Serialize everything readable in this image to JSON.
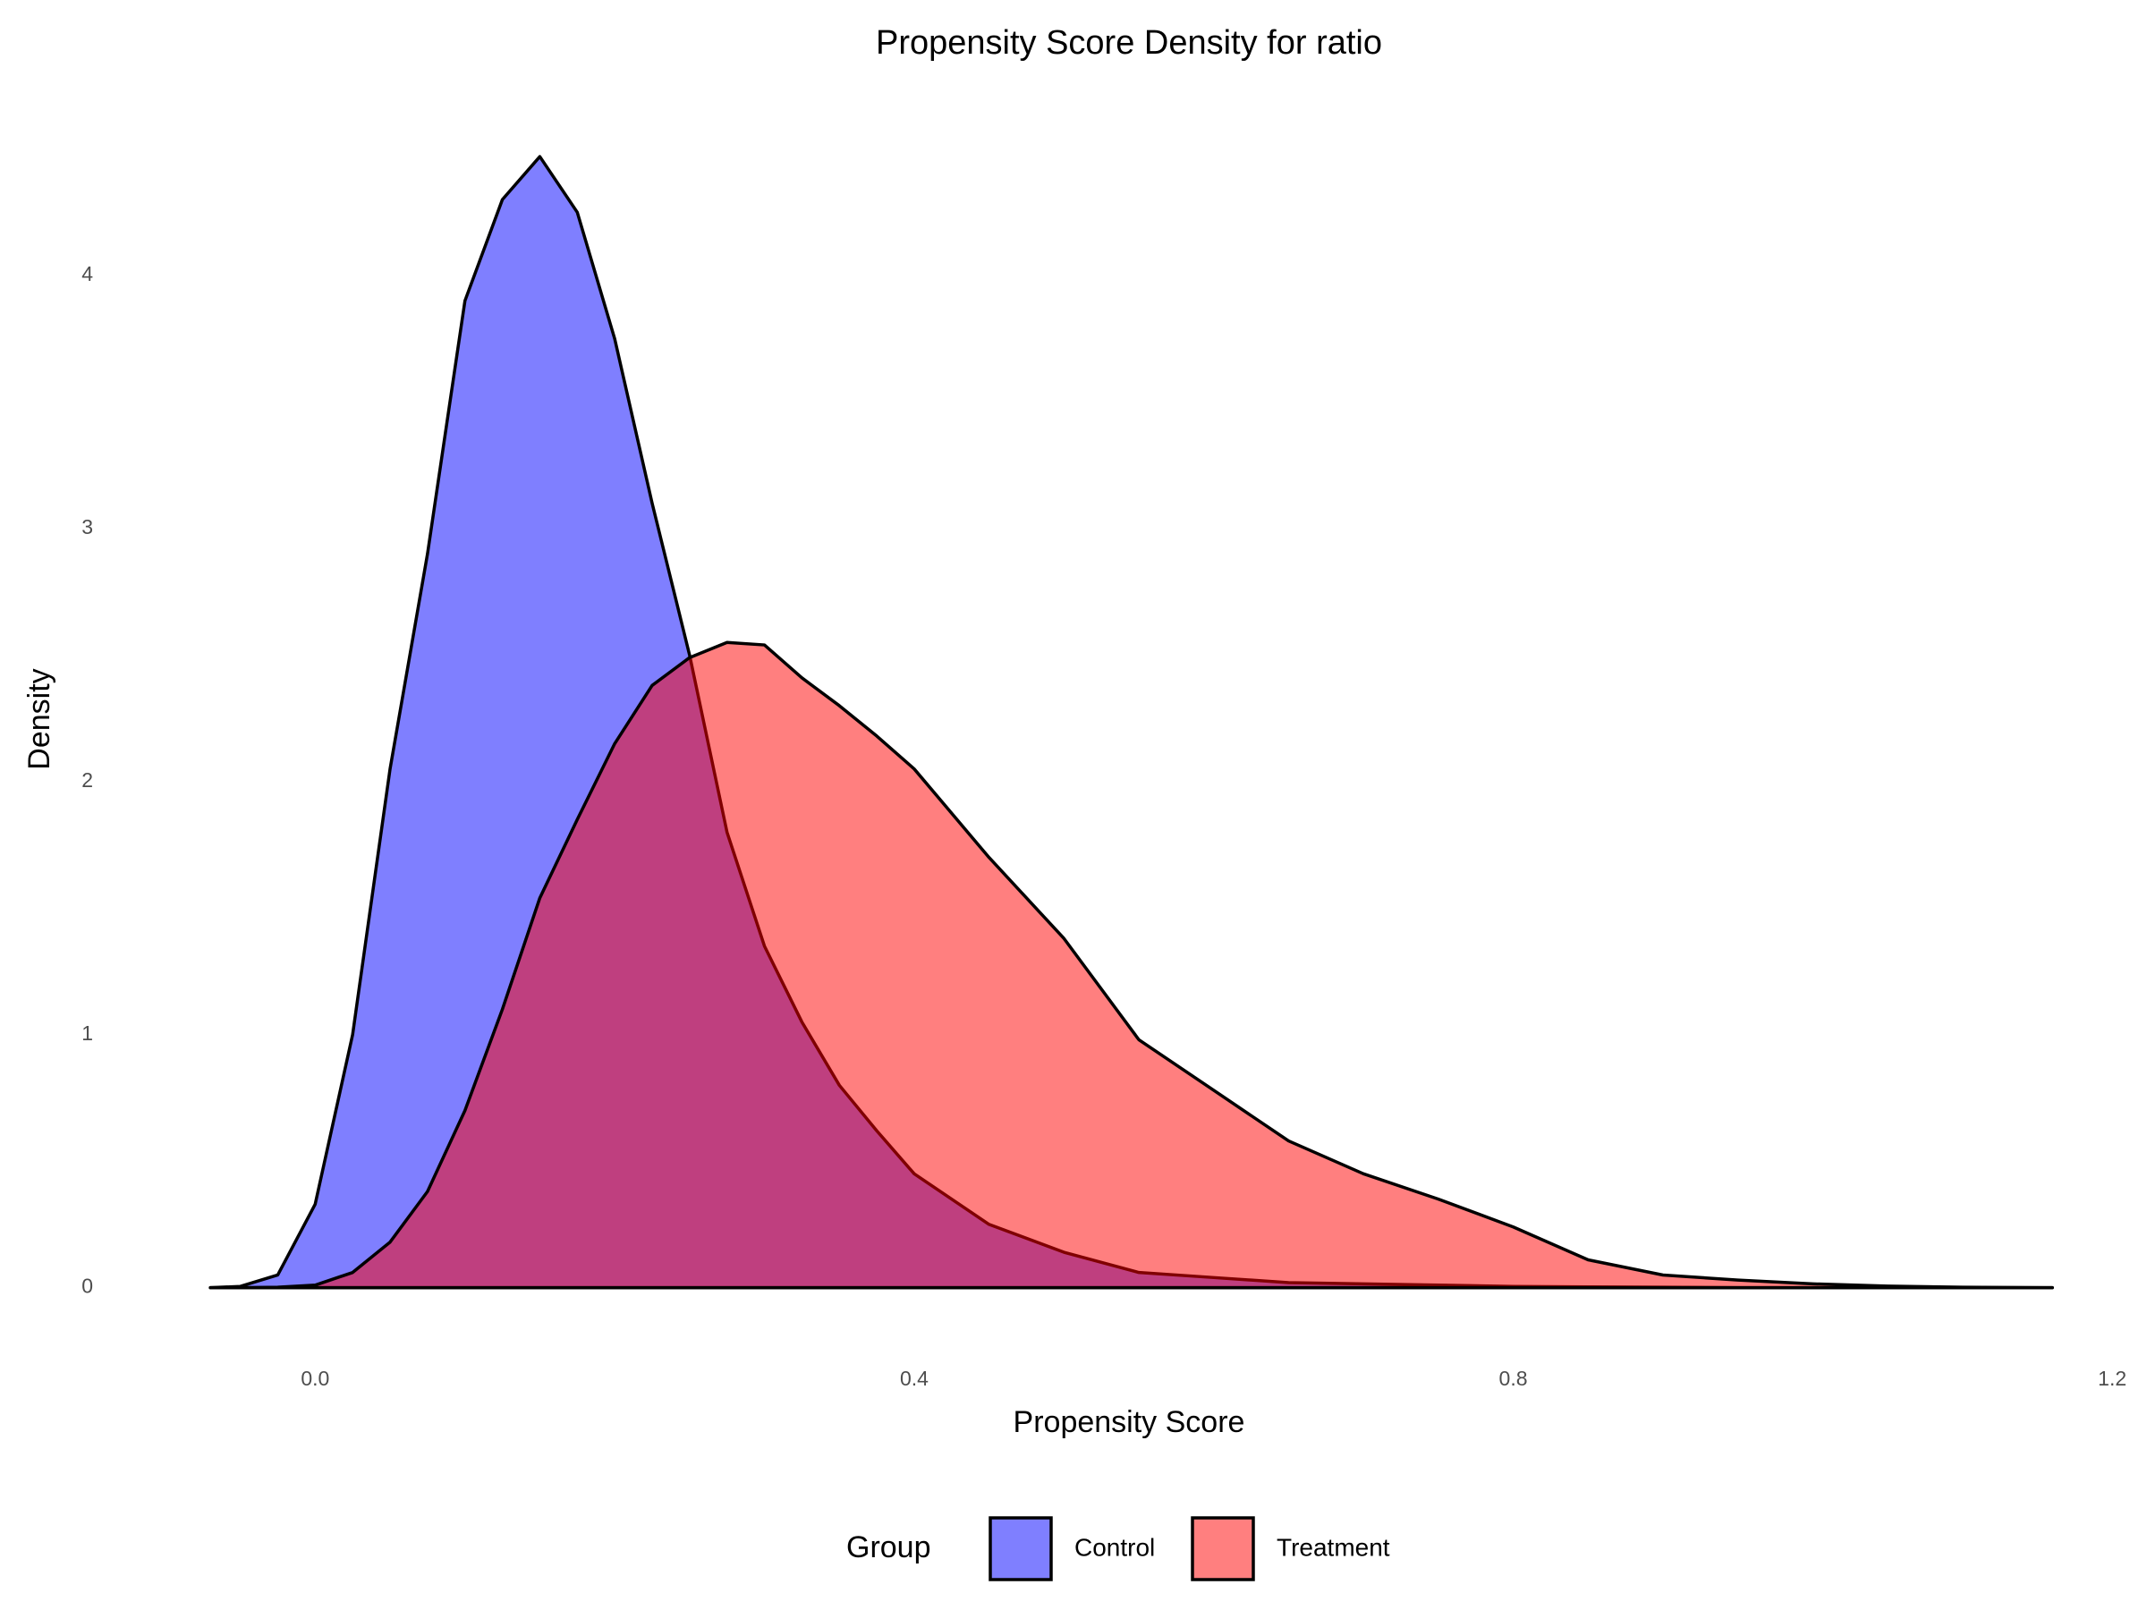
{
  "chart_data": {
    "type": "density",
    "title": "Propensity Score Density for ratio",
    "x_label": "Propensity Score",
    "y_label": "Density",
    "legend_title": "Group",
    "legend_position": "bottom",
    "fill_opacity": 0.5,
    "line_color": "#000000",
    "x": [
      -0.07,
      -0.05,
      -0.025,
      0,
      0.025,
      0.05,
      0.075,
      0.1,
      0.125,
      0.15,
      0.175,
      0.2,
      0.225,
      0.25,
      0.275,
      0.3,
      0.325,
      0.35,
      0.375,
      0.4,
      0.45,
      0.5,
      0.55,
      0.6,
      0.65,
      0.7,
      0.75,
      0.8,
      0.85,
      0.9,
      0.95,
      1.0,
      1.05,
      1.1,
      1.16
    ],
    "series": [
      {
        "name": "Control",
        "color": "#0000ff",
        "values": [
          0,
          0.005,
          0.05,
          0.33,
          1.0,
          2.05,
          2.9,
          3.9,
          4.3,
          4.47,
          4.25,
          3.75,
          3.1,
          2.5,
          1.8,
          1.35,
          1.05,
          0.8,
          0.62,
          0.45,
          0.25,
          0.14,
          0.06,
          0.04,
          0.02,
          0.015,
          0.01,
          0.005,
          0.003,
          0.002,
          0,
          0,
          0,
          0,
          0
        ]
      },
      {
        "name": "Treatment",
        "color": "#ff0000",
        "values": [
          0,
          0,
          0.002,
          0.01,
          0.06,
          0.18,
          0.38,
          0.7,
          1.1,
          1.54,
          1.85,
          2.15,
          2.38,
          2.49,
          2.55,
          2.54,
          2.41,
          2.3,
          2.18,
          2.05,
          1.7,
          1.38,
          0.98,
          0.78,
          0.58,
          0.45,
          0.35,
          0.24,
          0.11,
          0.05,
          0.03,
          0.015,
          0.006,
          0.002,
          0
        ]
      }
    ],
    "xlim": [
      -0.134,
      1.222
    ],
    "ylim": [
      -0.224,
      4.7
    ],
    "xticks": [
      {
        "value": 0,
        "label": "0.0"
      },
      0.4,
      0.8,
      1.2
    ],
    "yticks": [
      0,
      1,
      2,
      3,
      4
    ],
    "grid": false
  }
}
